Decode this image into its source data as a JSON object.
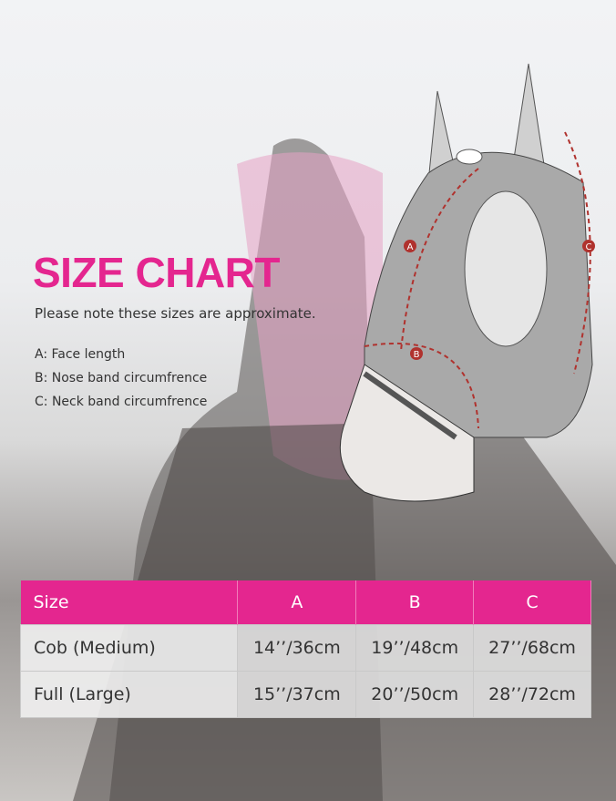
{
  "heading": {
    "title": "SIZE CHART",
    "note": "Please note these sizes are approximate."
  },
  "legend": [
    "A: Face length",
    "B: Nose band circumfrence",
    "C: Neck band circumfrence"
  ],
  "diagram": {
    "labels": [
      "A",
      "B",
      "C"
    ]
  },
  "table": {
    "headers": [
      "Size",
      "A",
      "B",
      "C"
    ],
    "rows": [
      [
        "Cob (Medium)",
        "14’’/36cm",
        "19’’/48cm",
        "27’’/68cm"
      ],
      [
        "Full (Large)",
        "15’’/37cm",
        "20’’/50cm",
        "28’’/72cm"
      ]
    ]
  },
  "colors": {
    "accent": "#e4268f",
    "arrow": "#b0322e"
  }
}
